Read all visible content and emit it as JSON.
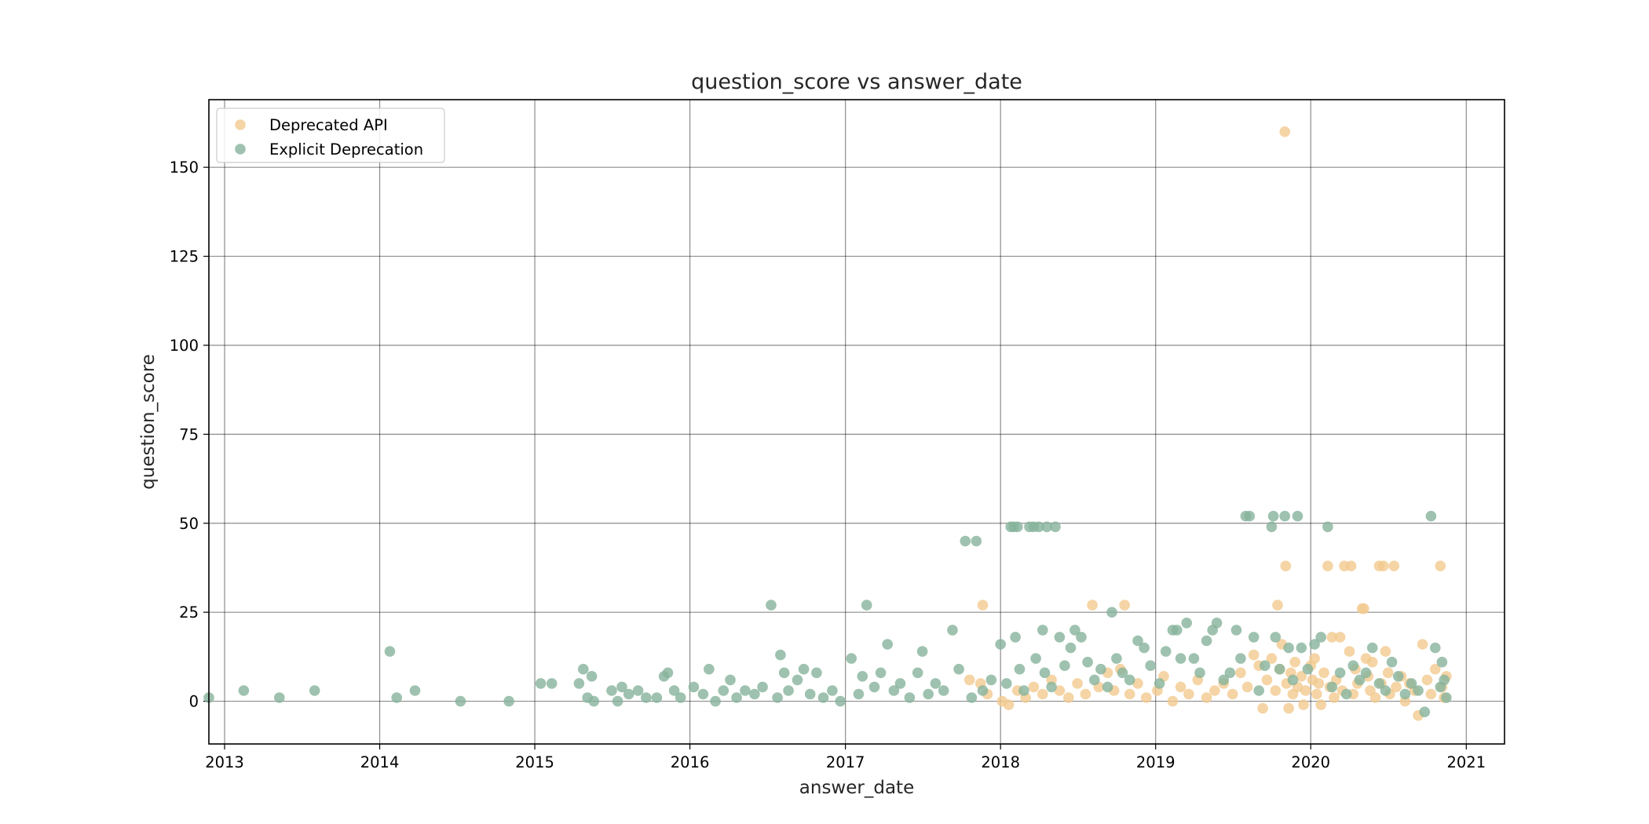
{
  "chart_data": {
    "type": "scatter",
    "title": "question_score vs answer_date",
    "xlabel": "answer_date",
    "ylabel": "question_score",
    "xlim": [
      "2012-11-25",
      "2021-04-01"
    ],
    "ylim": [
      -12,
      169
    ],
    "x_ticks": [
      "2013",
      "2014",
      "2015",
      "2016",
      "2017",
      "2018",
      "2019",
      "2020",
      "2021"
    ],
    "y_ticks": [
      0,
      25,
      50,
      75,
      100,
      125,
      150
    ],
    "grid": true,
    "legend_position": "top-left",
    "series": [
      {
        "name": "Deprecated API",
        "color": "#f2c98e",
        "points": [
          [
            "2017-11-20",
            27
          ],
          [
            "2017-11-15",
            5
          ],
          [
            "2017-10-20",
            6
          ],
          [
            "2017-12-01",
            2
          ],
          [
            "2018-01-05",
            0
          ],
          [
            "2018-01-20",
            -1
          ],
          [
            "2018-02-10",
            3
          ],
          [
            "2018-03-01",
            1
          ],
          [
            "2018-03-20",
            4
          ],
          [
            "2018-04-10",
            2
          ],
          [
            "2018-05-01",
            6
          ],
          [
            "2018-05-20",
            3
          ],
          [
            "2018-06-10",
            1
          ],
          [
            "2018-07-01",
            5
          ],
          [
            "2018-07-20",
            2
          ],
          [
            "2018-08-05",
            27
          ],
          [
            "2018-08-20",
            4
          ],
          [
            "2018-09-10",
            8
          ],
          [
            "2018-09-25",
            3
          ],
          [
            "2018-10-20",
            27
          ],
          [
            "2018-10-10",
            9
          ],
          [
            "2018-11-01",
            2
          ],
          [
            "2018-11-20",
            5
          ],
          [
            "2018-12-10",
            1
          ],
          [
            "2019-01-05",
            3
          ],
          [
            "2019-01-20",
            7
          ],
          [
            "2019-02-10",
            0
          ],
          [
            "2019-03-01",
            4
          ],
          [
            "2019-03-20",
            2
          ],
          [
            "2019-04-10",
            6
          ],
          [
            "2019-05-01",
            1
          ],
          [
            "2019-05-20",
            3
          ],
          [
            "2019-06-10",
            5
          ],
          [
            "2019-07-01",
            2
          ],
          [
            "2019-07-20",
            8
          ],
          [
            "2019-08-05",
            4
          ],
          [
            "2019-08-20",
            13
          ],
          [
            "2019-09-01",
            10
          ],
          [
            "2019-09-10",
            -2
          ],
          [
            "2019-09-20",
            6
          ],
          [
            "2019-10-01",
            12
          ],
          [
            "2019-10-10",
            3
          ],
          [
            "2019-10-15",
            27
          ],
          [
            "2019-10-20",
            9
          ],
          [
            "2019-10-25",
            16
          ],
          [
            "2019-11-01",
            160
          ],
          [
            "2019-11-03",
            38
          ],
          [
            "2019-11-05",
            5
          ],
          [
            "2019-11-10",
            -2
          ],
          [
            "2019-11-15",
            8
          ],
          [
            "2019-11-20",
            2
          ],
          [
            "2019-11-25",
            11
          ],
          [
            "2019-12-01",
            4
          ],
          [
            "2019-12-10",
            7
          ],
          [
            "2019-12-15",
            -1
          ],
          [
            "2019-12-20",
            3
          ],
          [
            "2020-01-01",
            10
          ],
          [
            "2020-01-05",
            6
          ],
          [
            "2020-01-10",
            12
          ],
          [
            "2020-01-15",
            2
          ],
          [
            "2020-01-20",
            5
          ],
          [
            "2020-01-25",
            -1
          ],
          [
            "2020-02-01",
            8
          ],
          [
            "2020-02-10",
            38
          ],
          [
            "2020-02-15",
            4
          ],
          [
            "2020-02-20",
            18
          ],
          [
            "2020-02-25",
            1
          ],
          [
            "2020-03-01",
            6
          ],
          [
            "2020-03-10",
            18
          ],
          [
            "2020-03-15",
            3
          ],
          [
            "2020-03-20",
            38
          ],
          [
            "2020-04-01",
            14
          ],
          [
            "2020-04-05",
            38
          ],
          [
            "2020-04-10",
            2
          ],
          [
            "2020-04-15",
            9
          ],
          [
            "2020-04-20",
            5
          ],
          [
            "2020-05-01",
            26
          ],
          [
            "2020-05-05",
            26
          ],
          [
            "2020-05-10",
            12
          ],
          [
            "2020-05-15",
            7
          ],
          [
            "2020-05-20",
            3
          ],
          [
            "2020-05-25",
            11
          ],
          [
            "2020-06-01",
            1
          ],
          [
            "2020-06-10",
            38
          ],
          [
            "2020-06-15",
            5
          ],
          [
            "2020-06-20",
            38
          ],
          [
            "2020-06-25",
            14
          ],
          [
            "2020-07-01",
            8
          ],
          [
            "2020-07-05",
            2
          ],
          [
            "2020-07-15",
            38
          ],
          [
            "2020-07-20",
            4
          ],
          [
            "2020-08-01",
            7
          ],
          [
            "2020-08-10",
            0
          ],
          [
            "2020-08-20",
            5
          ],
          [
            "2020-09-01",
            3
          ],
          [
            "2020-09-10",
            -4
          ],
          [
            "2020-09-20",
            16
          ],
          [
            "2020-10-01",
            6
          ],
          [
            "2020-10-10",
            2
          ],
          [
            "2020-10-20",
            9
          ],
          [
            "2020-11-01",
            38
          ],
          [
            "2020-11-05",
            4
          ],
          [
            "2020-11-10",
            1
          ],
          [
            "2020-11-15",
            7
          ]
        ]
      },
      {
        "name": "Explicit Deprecation",
        "color": "#86b39b",
        "points": [
          [
            "2012-11-25",
            1
          ],
          [
            "2013-02-15",
            3
          ],
          [
            "2013-05-10",
            1
          ],
          [
            "2013-08-01",
            3
          ],
          [
            "2014-01-25",
            14
          ],
          [
            "2014-02-10",
            1
          ],
          [
            "2014-03-25",
            3
          ],
          [
            "2014-07-10",
            0
          ],
          [
            "2014-11-01",
            0
          ],
          [
            "2015-01-15",
            5
          ],
          [
            "2015-02-10",
            5
          ],
          [
            "2015-04-15",
            5
          ],
          [
            "2015-04-25",
            9
          ],
          [
            "2015-05-05",
            1
          ],
          [
            "2015-05-15",
            7
          ],
          [
            "2015-05-20",
            0
          ],
          [
            "2015-07-01",
            3
          ],
          [
            "2015-07-15",
            0
          ],
          [
            "2015-07-25",
            4
          ],
          [
            "2015-08-10",
            2
          ],
          [
            "2015-09-01",
            3
          ],
          [
            "2015-09-20",
            1
          ],
          [
            "2015-10-15",
            1
          ],
          [
            "2015-11-01",
            7
          ],
          [
            "2015-11-10",
            8
          ],
          [
            "2015-11-25",
            3
          ],
          [
            "2015-12-10",
            1
          ],
          [
            "2016-01-10",
            4
          ],
          [
            "2016-02-01",
            2
          ],
          [
            "2016-02-15",
            9
          ],
          [
            "2016-03-01",
            0
          ],
          [
            "2016-03-20",
            3
          ],
          [
            "2016-04-05",
            6
          ],
          [
            "2016-04-20",
            1
          ],
          [
            "2016-05-10",
            3
          ],
          [
            "2016-06-01",
            2
          ],
          [
            "2016-06-20",
            4
          ],
          [
            "2016-07-10",
            27
          ],
          [
            "2016-07-25",
            1
          ],
          [
            "2016-08-01",
            13
          ],
          [
            "2016-08-10",
            8
          ],
          [
            "2016-08-20",
            3
          ],
          [
            "2016-09-10",
            6
          ],
          [
            "2016-09-25",
            9
          ],
          [
            "2016-10-10",
            2
          ],
          [
            "2016-10-25",
            8
          ],
          [
            "2016-11-10",
            1
          ],
          [
            "2016-12-01",
            3
          ],
          [
            "2016-12-20",
            0
          ],
          [
            "2017-01-15",
            12
          ],
          [
            "2017-02-01",
            2
          ],
          [
            "2017-02-10",
            7
          ],
          [
            "2017-02-20",
            27
          ],
          [
            "2017-03-10",
            4
          ],
          [
            "2017-03-25",
            8
          ],
          [
            "2017-04-10",
            16
          ],
          [
            "2017-04-25",
            3
          ],
          [
            "2017-05-10",
            5
          ],
          [
            "2017-06-01",
            1
          ],
          [
            "2017-06-20",
            8
          ],
          [
            "2017-07-01",
            14
          ],
          [
            "2017-07-15",
            2
          ],
          [
            "2017-08-01",
            5
          ],
          [
            "2017-08-20",
            3
          ],
          [
            "2017-09-10",
            20
          ],
          [
            "2017-09-25",
            9
          ],
          [
            "2017-10-10",
            45
          ],
          [
            "2017-10-25",
            1
          ],
          [
            "2017-11-05",
            45
          ],
          [
            "2017-11-20",
            3
          ],
          [
            "2017-12-10",
            6
          ],
          [
            "2018-01-01",
            16
          ],
          [
            "2018-01-15",
            5
          ],
          [
            "2018-01-25",
            49
          ],
          [
            "2018-02-01",
            49
          ],
          [
            "2018-02-05",
            18
          ],
          [
            "2018-02-10",
            49
          ],
          [
            "2018-02-15",
            9
          ],
          [
            "2018-02-25",
            3
          ],
          [
            "2018-03-10",
            49
          ],
          [
            "2018-03-20",
            49
          ],
          [
            "2018-03-25",
            12
          ],
          [
            "2018-04-01",
            49
          ],
          [
            "2018-04-10",
            20
          ],
          [
            "2018-04-15",
            8
          ],
          [
            "2018-04-20",
            49
          ],
          [
            "2018-05-01",
            4
          ],
          [
            "2018-05-10",
            49
          ],
          [
            "2018-05-20",
            18
          ],
          [
            "2018-06-01",
            10
          ],
          [
            "2018-06-15",
            15
          ],
          [
            "2018-06-25",
            20
          ],
          [
            "2018-07-10",
            18
          ],
          [
            "2018-07-25",
            11
          ],
          [
            "2018-08-10",
            6
          ],
          [
            "2018-08-25",
            9
          ],
          [
            "2018-09-10",
            4
          ],
          [
            "2018-09-20",
            25
          ],
          [
            "2018-10-01",
            12
          ],
          [
            "2018-10-15",
            8
          ],
          [
            "2018-11-01",
            6
          ],
          [
            "2018-11-20",
            17
          ],
          [
            "2018-12-05",
            15
          ],
          [
            "2018-12-20",
            10
          ],
          [
            "2019-01-10",
            5
          ],
          [
            "2019-01-25",
            14
          ],
          [
            "2019-02-10",
            20
          ],
          [
            "2019-02-20",
            20
          ],
          [
            "2019-03-01",
            12
          ],
          [
            "2019-03-15",
            22
          ],
          [
            "2019-04-01",
            12
          ],
          [
            "2019-04-15",
            8
          ],
          [
            "2019-05-01",
            17
          ],
          [
            "2019-05-15",
            20
          ],
          [
            "2019-05-25",
            22
          ],
          [
            "2019-06-10",
            6
          ],
          [
            "2019-06-25",
            8
          ],
          [
            "2019-07-10",
            20
          ],
          [
            "2019-07-20",
            12
          ],
          [
            "2019-08-01",
            52
          ],
          [
            "2019-08-10",
            52
          ],
          [
            "2019-08-20",
            18
          ],
          [
            "2019-09-01",
            3
          ],
          [
            "2019-09-15",
            10
          ],
          [
            "2019-10-01",
            49
          ],
          [
            "2019-10-05",
            52
          ],
          [
            "2019-10-10",
            18
          ],
          [
            "2019-10-20",
            9
          ],
          [
            "2019-11-01",
            52
          ],
          [
            "2019-11-10",
            15
          ],
          [
            "2019-11-20",
            6
          ],
          [
            "2019-12-01",
            52
          ],
          [
            "2019-12-10",
            15
          ],
          [
            "2019-12-25",
            9
          ],
          [
            "2020-01-10",
            16
          ],
          [
            "2020-01-25",
            18
          ],
          [
            "2020-02-10",
            49
          ],
          [
            "2020-02-20",
            4
          ],
          [
            "2020-03-10",
            8
          ],
          [
            "2020-03-25",
            2
          ],
          [
            "2020-04-10",
            10
          ],
          [
            "2020-04-25",
            6
          ],
          [
            "2020-05-10",
            8
          ],
          [
            "2020-05-25",
            15
          ],
          [
            "2020-06-10",
            5
          ],
          [
            "2020-06-25",
            3
          ],
          [
            "2020-07-10",
            11
          ],
          [
            "2020-07-25",
            7
          ],
          [
            "2020-08-10",
            2
          ],
          [
            "2020-08-25",
            5
          ],
          [
            "2020-09-10",
            3
          ],
          [
            "2020-09-25",
            -3
          ],
          [
            "2020-10-10",
            52
          ],
          [
            "2020-10-20",
            15
          ],
          [
            "2020-11-01",
            4
          ],
          [
            "2020-11-05",
            11
          ],
          [
            "2020-11-10",
            6
          ],
          [
            "2020-11-15",
            1
          ]
        ]
      }
    ]
  }
}
